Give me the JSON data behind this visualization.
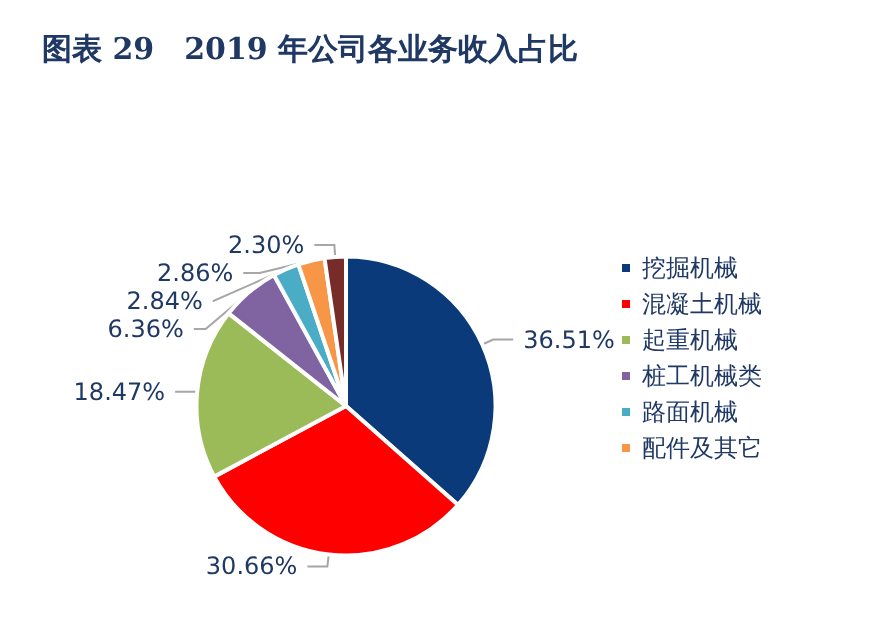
{
  "chart_data": {
    "type": "pie",
    "title": "图表 29　2019 年公司各业务收入占比",
    "categories": [
      "挖掘机械",
      "混凝土机械",
      "起重机械",
      "桩工机械类",
      "路面机械",
      "配件及其它",
      null
    ],
    "values": [
      36.51,
      30.66,
      18.47,
      6.36,
      2.84,
      2.86,
      2.3
    ],
    "value_labels": [
      "36.51%",
      "30.66%",
      "18.47%",
      "6.36%",
      "2.84%",
      "2.86%",
      "2.30%"
    ],
    "colors": [
      "#0a3a7a",
      "#ff0000",
      "#9bbb59",
      "#8064a2",
      "#4bacc6",
      "#f79646",
      "#772c2a"
    ],
    "legend": "right"
  }
}
